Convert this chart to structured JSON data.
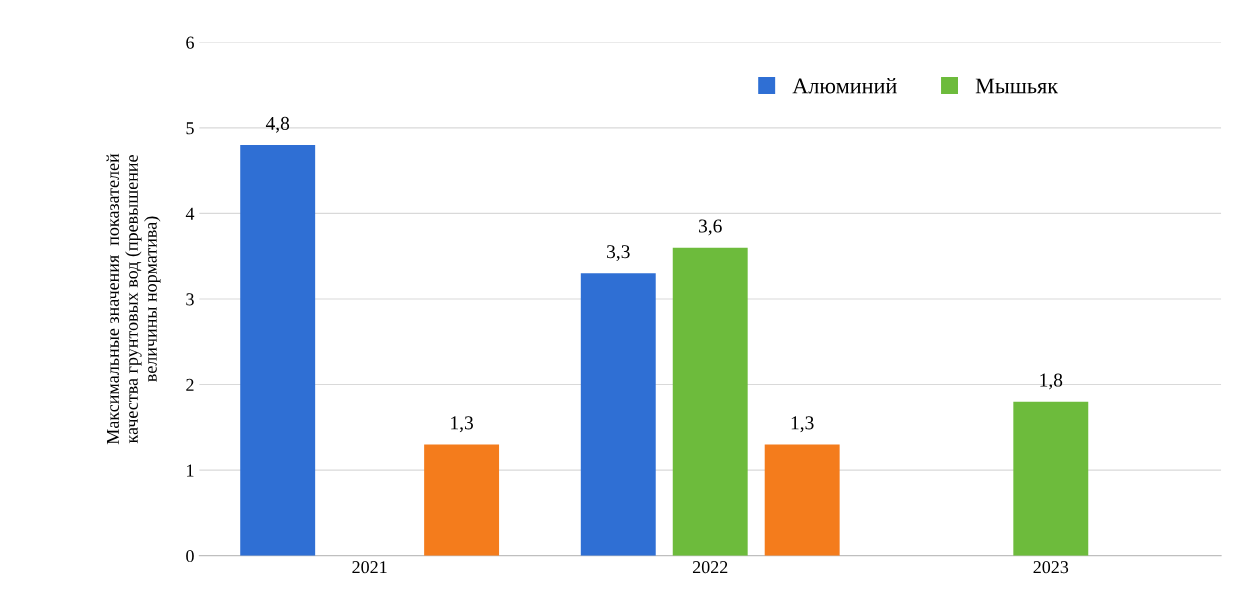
{
  "chart_data": {
    "type": "bar",
    "ylabel": "Максимальные значения  показателей\nкачества грунтовых вод (превышение\nвеличины норматива)",
    "categories": [
      "2021",
      "2022",
      "2023"
    ],
    "series": [
      {
        "name": "Алюминий",
        "color": "#2f6fd4",
        "values": [
          4.8,
          3.3,
          null
        ],
        "value_labels": [
          "4,8",
          "3,3",
          null
        ]
      },
      {
        "name": "Мышьяк",
        "color": "#6dbb3c",
        "values": [
          null,
          3.6,
          1.8
        ],
        "value_labels": [
          null,
          "3,6",
          "1,8"
        ]
      },
      {
        "color": "#f47c1c",
        "values": [
          1.3,
          1.3,
          null
        ],
        "value_labels": [
          "1,3",
          "1,3",
          null
        ]
      }
    ],
    "ylim": [
      0,
      6
    ],
    "yticks": [
      0,
      1,
      2,
      3,
      4,
      5,
      6
    ],
    "grid": "y",
    "legend": "top right"
  }
}
